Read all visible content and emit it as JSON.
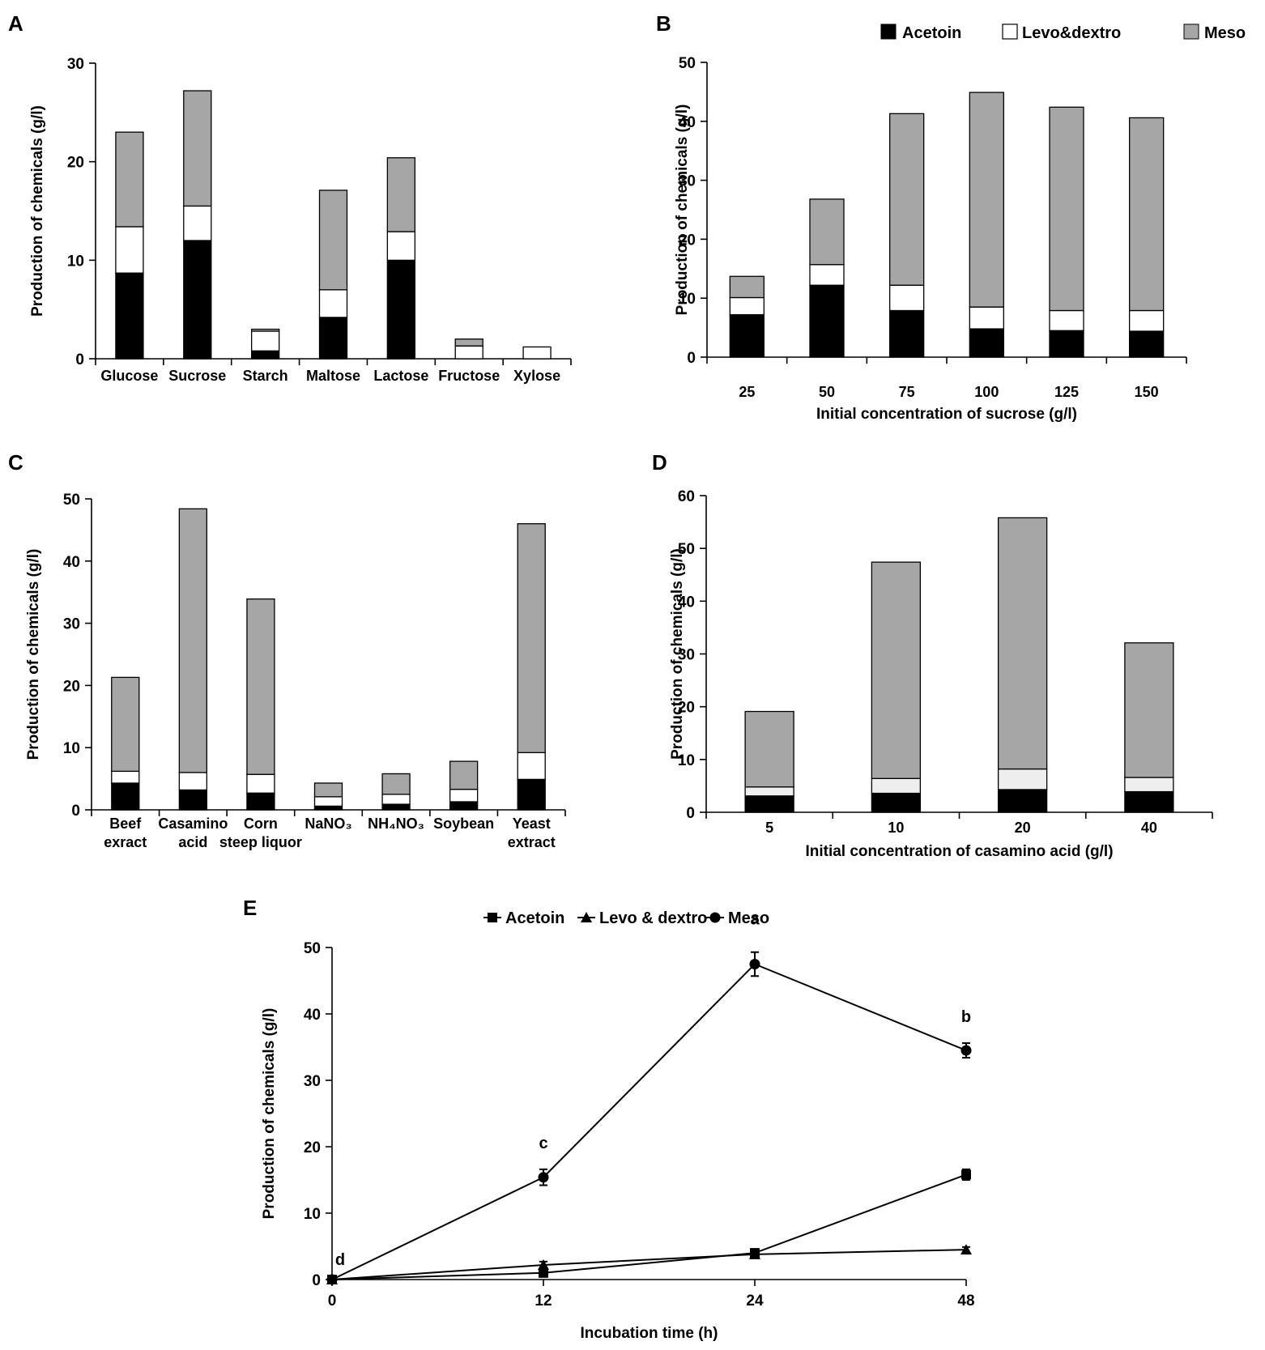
{
  "colors": {
    "acetoin": "#000000",
    "levo": "#ffffff",
    "meso": "#a6a6a6",
    "levo_light": "#eeeeee",
    "axis": "#000000"
  },
  "legend_top": {
    "acetoin": "Acetoin",
    "levo": "Levo&dextro",
    "meso": "Meso"
  },
  "chart_data": [
    {
      "panel": "A",
      "type": "bar",
      "stacked": true,
      "title": "",
      "xlabel": "",
      "ylabel": "Production of chemicals (g/l)",
      "ylim": [
        0,
        30
      ],
      "yticks": [
        "0",
        "10",
        "20",
        "30"
      ],
      "categories": [
        "Glucose",
        "Sucrose",
        "Starch",
        "Maltose",
        "Lactose",
        "Fructose",
        "Xylose"
      ],
      "series": [
        {
          "name": "Acetoin",
          "values": [
            8.7,
            12.0,
            0.8,
            4.2,
            10.0,
            0.0,
            0.0
          ]
        },
        {
          "name": "Levo&dextro",
          "values": [
            4.7,
            3.5,
            2.0,
            2.8,
            2.9,
            1.3,
            1.2
          ]
        },
        {
          "name": "Meso",
          "values": [
            9.6,
            11.7,
            0.2,
            10.1,
            7.5,
            0.7,
            0.0
          ]
        }
      ]
    },
    {
      "panel": "B",
      "type": "bar",
      "stacked": true,
      "title": "",
      "xlabel": "Initial concentration of sucrose (g/l)",
      "ylabel": "Production of chemicals (g/l)",
      "ylim": [
        0,
        50
      ],
      "yticks": [
        "0",
        "10",
        "20",
        "30",
        "40",
        "50"
      ],
      "categories": [
        "25",
        "50",
        "75",
        "100",
        "125",
        "150"
      ],
      "series": [
        {
          "name": "Acetoin",
          "values": [
            7.2,
            12.2,
            7.9,
            4.8,
            4.5,
            4.4
          ]
        },
        {
          "name": "Levo&dextro",
          "values": [
            2.9,
            3.5,
            4.3,
            3.7,
            3.4,
            3.5
          ]
        },
        {
          "name": "Meso",
          "values": [
            3.6,
            11.1,
            29.1,
            36.4,
            34.5,
            32.7
          ]
        }
      ]
    },
    {
      "panel": "C",
      "type": "bar",
      "stacked": true,
      "title": "",
      "xlabel": "",
      "ylabel": "Production of chemicals (g/l)",
      "ylim": [
        0,
        50
      ],
      "yticks": [
        "0",
        "10",
        "20",
        "30",
        "40",
        "50"
      ],
      "categories": [
        [
          "Beef",
          "exract"
        ],
        [
          "Casamino",
          "acid"
        ],
        [
          "Corn",
          "steep liquor"
        ],
        [
          "NaNO₃"
        ],
        [
          "NH₄NO₃"
        ],
        [
          "Soybean"
        ],
        [
          "Yeast",
          "extract"
        ]
      ],
      "series": [
        {
          "name": "Acetoin",
          "values": [
            4.3,
            3.2,
            2.7,
            0.6,
            0.9,
            1.3,
            4.9
          ]
        },
        {
          "name": "Levo&dextro",
          "values": [
            1.9,
            2.8,
            3.0,
            1.5,
            1.6,
            2.0,
            4.3
          ]
        },
        {
          "name": "Meso",
          "values": [
            15.1,
            42.4,
            28.2,
            2.2,
            3.3,
            4.5,
            36.8
          ]
        }
      ]
    },
    {
      "panel": "D",
      "type": "bar",
      "stacked": true,
      "title": "",
      "xlabel": "Initial concentration of casamino acid (g/l)",
      "ylabel": "Production of chemicals (g/l)",
      "ylim": [
        0,
        60
      ],
      "yticks": [
        "0",
        "10",
        "20",
        "30",
        "40",
        "50",
        "60"
      ],
      "categories": [
        "5",
        "10",
        "20",
        "40"
      ],
      "series": [
        {
          "name": "Acetoin",
          "values": [
            3.1,
            3.6,
            4.3,
            3.9
          ]
        },
        {
          "name": "Levo&dextro",
          "values": [
            1.7,
            2.8,
            3.9,
            2.7
          ]
        },
        {
          "name": "Meso",
          "values": [
            14.3,
            41.0,
            47.6,
            25.5
          ]
        }
      ]
    },
    {
      "panel": "E",
      "type": "line",
      "title": "",
      "xlabel": "Incubation time (h)",
      "ylabel": "Production of chemicals (g/l)",
      "ylim": [
        0,
        50
      ],
      "yticks": [
        "0",
        "10",
        "20",
        "30",
        "40",
        "50"
      ],
      "x": [
        "0",
        "12",
        "24",
        "48"
      ],
      "legend": [
        "Acetoin",
        "Levo & dextro",
        "Meso"
      ],
      "series": [
        {
          "name": "Acetoin",
          "marker": "square",
          "values": [
            0,
            1.0,
            4.0,
            15.8
          ],
          "errors": [
            0,
            0.3,
            0.6,
            0.8
          ]
        },
        {
          "name": "Levo & dextro",
          "marker": "triangle",
          "values": [
            0,
            2.2,
            3.8,
            4.5
          ],
          "errors": [
            0,
            0.5,
            0.5,
            0.4
          ]
        },
        {
          "name": "Meso",
          "marker": "circle",
          "values": [
            0,
            15.4,
            47.5,
            34.5
          ],
          "errors": [
            0,
            1.2,
            1.8,
            1.1
          ]
        }
      ],
      "annotations": [
        {
          "x": "0",
          "label": "d"
        },
        {
          "x": "12",
          "label": "c"
        },
        {
          "x": "24",
          "label": "a"
        },
        {
          "x": "48",
          "label": "b"
        }
      ]
    }
  ]
}
